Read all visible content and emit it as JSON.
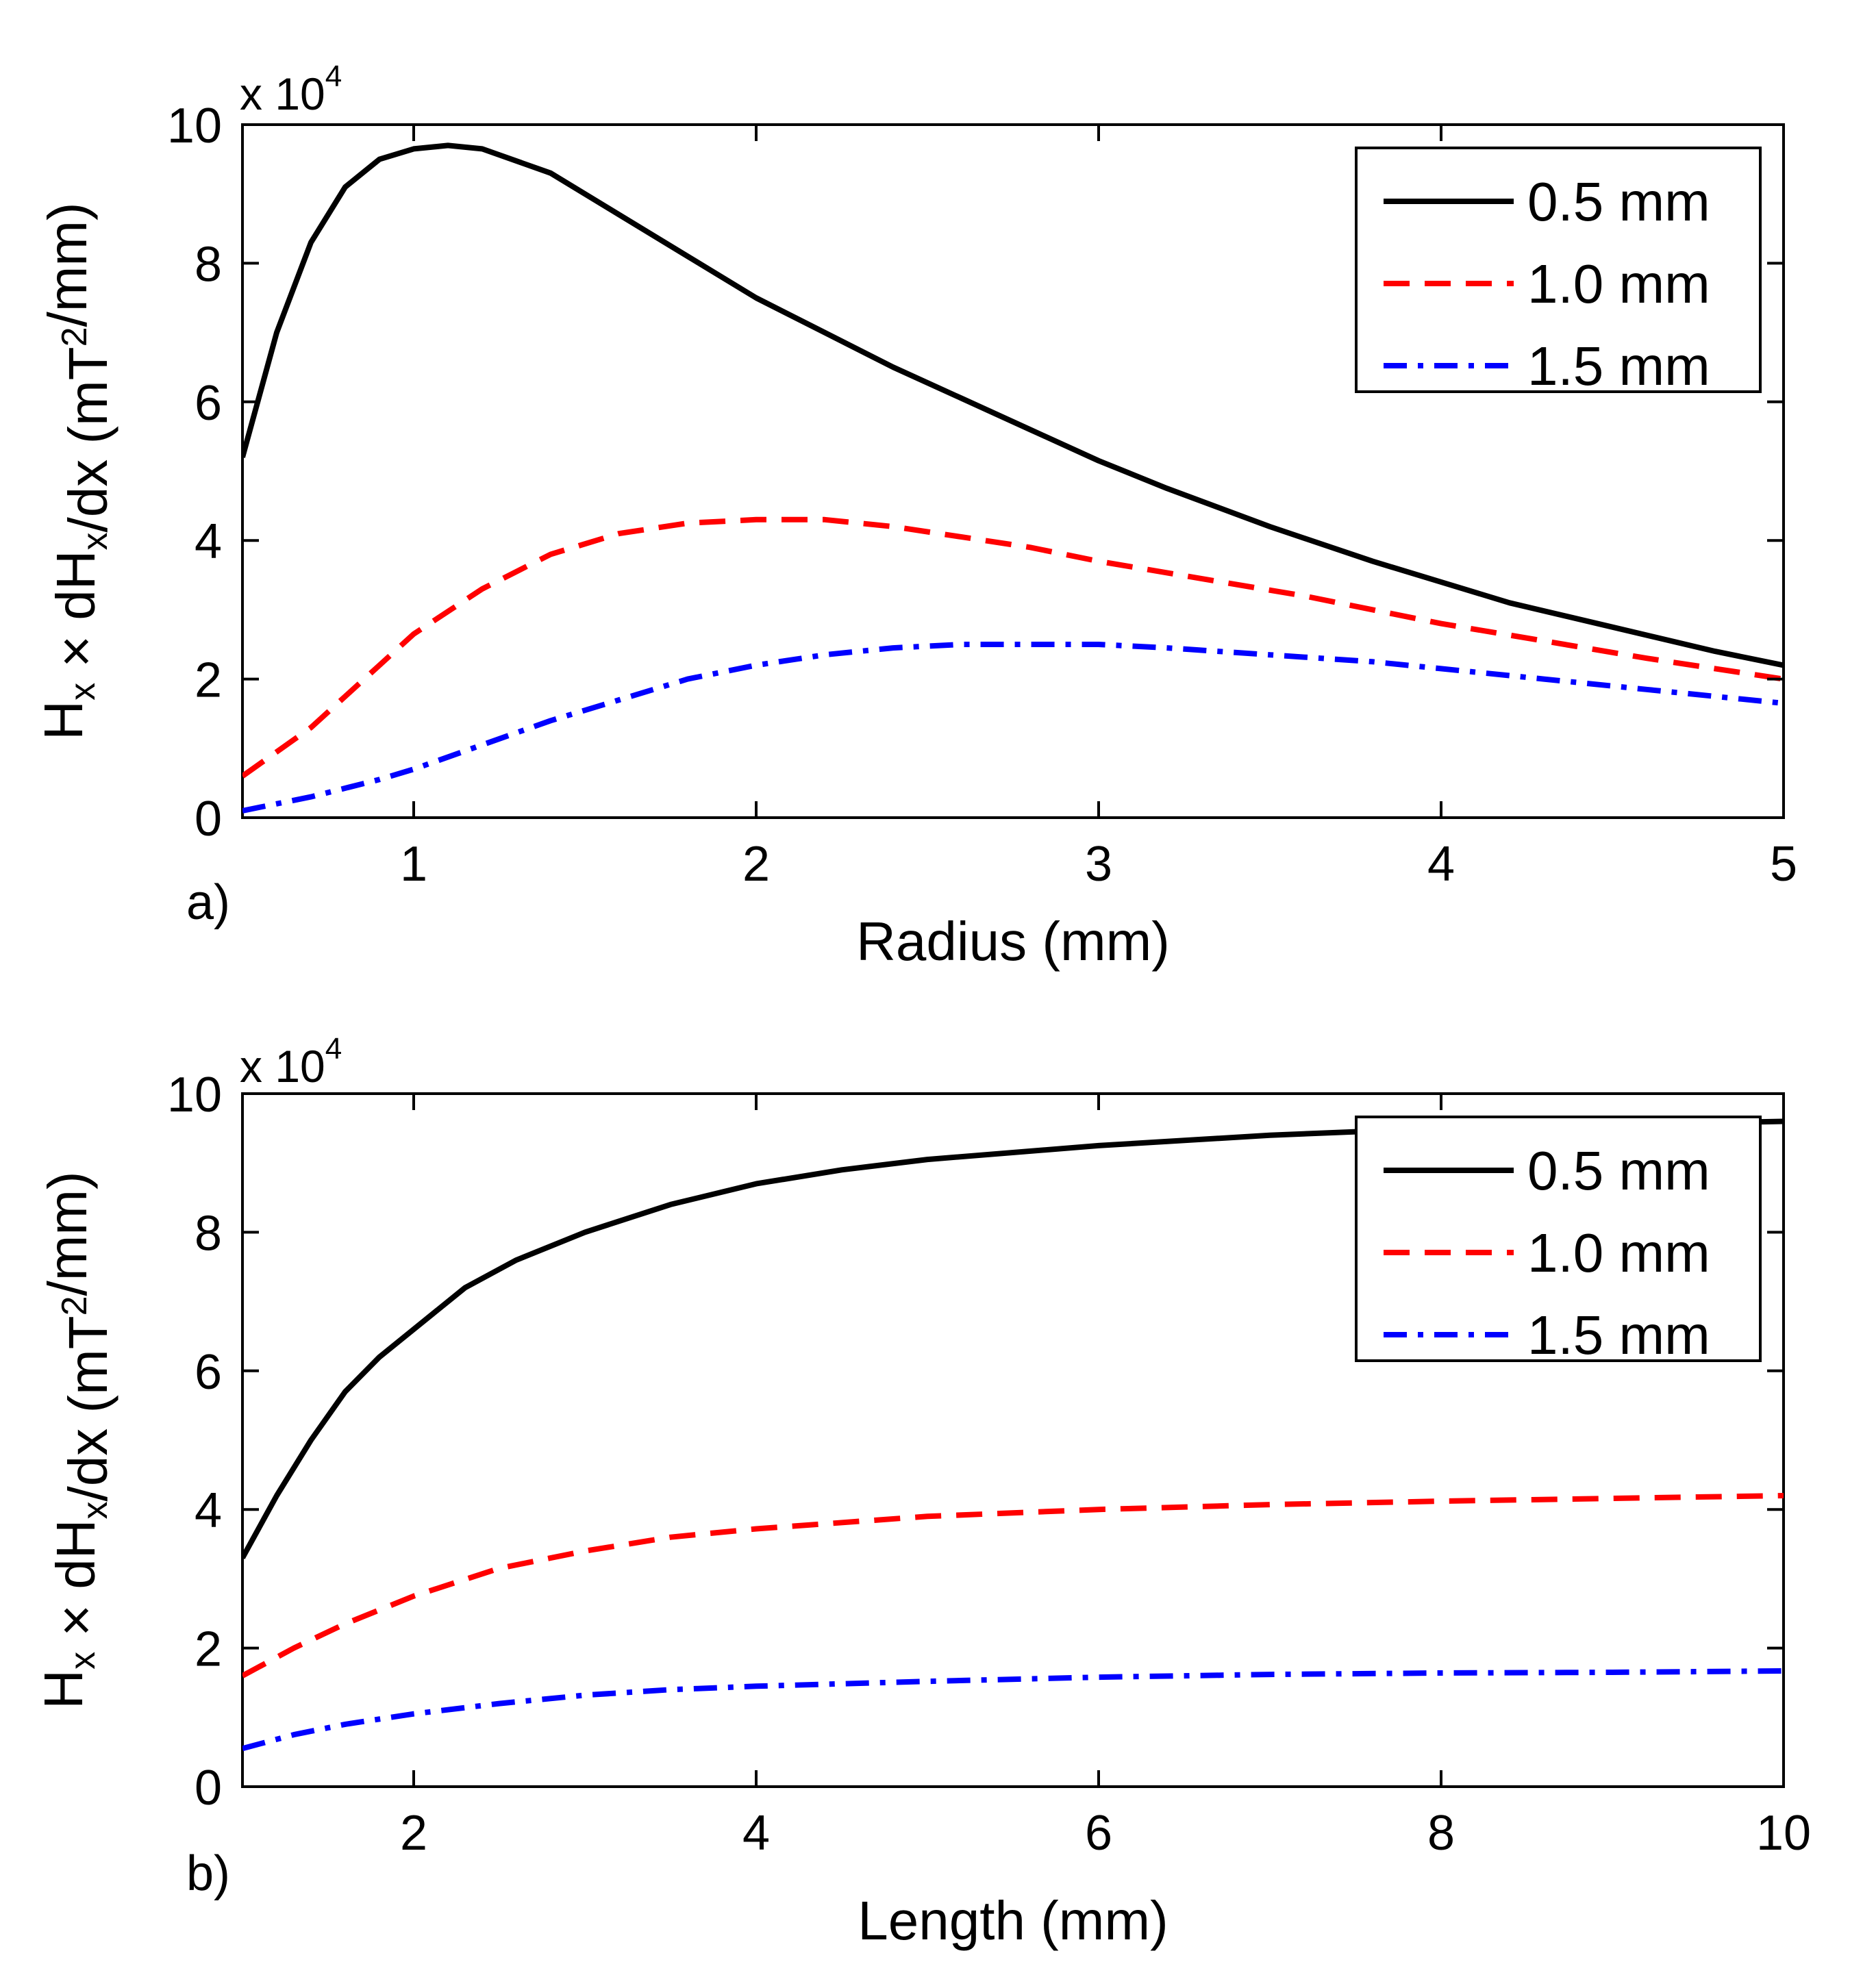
{
  "chart_data": [
    {
      "type": "line",
      "panel_label": "a)",
      "xlabel": "Radius (mm)",
      "ylabel": "H_x × dH_x/dx (mT^2/mm)",
      "y_multiplier": {
        "base": "x 10",
        "exponent": "4"
      },
      "xlim": [
        0.5,
        5
      ],
      "ylim": [
        0,
        10
      ],
      "xticks": [
        1,
        2,
        3,
        4,
        5
      ],
      "yticks": [
        0,
        2,
        4,
        6,
        8,
        10
      ],
      "legend": {
        "position": "top-right"
      },
      "grid": false,
      "series": [
        {
          "name": "0.5 mm",
          "color": "#000000",
          "style": "solid",
          "x": [
            0.5,
            0.6,
            0.7,
            0.8,
            0.9,
            1.0,
            1.1,
            1.2,
            1.4,
            1.6,
            1.8,
            2.0,
            2.2,
            2.4,
            2.6,
            2.8,
            3.0,
            3.2,
            3.5,
            3.8,
            4.0,
            4.2,
            4.5,
            4.8,
            5.0
          ],
          "y": [
            5.2,
            7.0,
            8.3,
            9.1,
            9.5,
            9.65,
            9.7,
            9.65,
            9.3,
            8.7,
            8.1,
            7.5,
            7.0,
            6.5,
            6.05,
            5.6,
            5.15,
            4.75,
            4.2,
            3.7,
            3.4,
            3.1,
            2.75,
            2.4,
            2.2
          ]
        },
        {
          "name": "1.0 mm",
          "color": "#ff0000",
          "style": "dashed",
          "x": [
            0.5,
            0.7,
            0.9,
            1.0,
            1.2,
            1.4,
            1.6,
            1.8,
            2.0,
            2.2,
            2.4,
            2.6,
            2.8,
            3.0,
            3.3,
            3.6,
            4.0,
            4.3,
            4.6,
            5.0
          ],
          "y": [
            0.6,
            1.3,
            2.2,
            2.65,
            3.3,
            3.8,
            4.1,
            4.25,
            4.3,
            4.3,
            4.2,
            4.05,
            3.9,
            3.7,
            3.45,
            3.2,
            2.8,
            2.55,
            2.3,
            2.0
          ]
        },
        {
          "name": "1.5 mm",
          "color": "#0000ff",
          "style": "dashdot",
          "x": [
            0.5,
            0.7,
            0.9,
            1.0,
            1.2,
            1.4,
            1.6,
            1.8,
            2.0,
            2.2,
            2.4,
            2.6,
            2.8,
            3.0,
            3.2,
            3.5,
            3.8,
            4.0,
            4.3,
            4.6,
            5.0
          ],
          "y": [
            0.1,
            0.3,
            0.55,
            0.7,
            1.05,
            1.4,
            1.7,
            2.0,
            2.2,
            2.35,
            2.45,
            2.5,
            2.5,
            2.5,
            2.45,
            2.35,
            2.25,
            2.15,
            2.0,
            1.85,
            1.65
          ]
        }
      ]
    },
    {
      "type": "line",
      "panel_label": "b)",
      "xlabel": "Length (mm)",
      "ylabel": "H_x × dH_x/dx (mT^2/mm)",
      "y_multiplier": {
        "base": "x 10",
        "exponent": "4"
      },
      "xlim": [
        1,
        10
      ],
      "ylim": [
        0,
        10
      ],
      "xticks": [
        2,
        4,
        6,
        8,
        10
      ],
      "yticks": [
        0,
        2,
        4,
        6,
        8,
        10
      ],
      "legend": {
        "position": "top-right"
      },
      "grid": false,
      "series": [
        {
          "name": "0.5 mm",
          "color": "#000000",
          "style": "solid",
          "x": [
            1.0,
            1.2,
            1.4,
            1.6,
            1.8,
            2.0,
            2.3,
            2.6,
            3.0,
            3.5,
            4.0,
            4.5,
            5.0,
            6.0,
            7.0,
            8.0,
            9.0,
            10.0
          ],
          "y": [
            3.3,
            4.2,
            5.0,
            5.7,
            6.2,
            6.6,
            7.2,
            7.6,
            8.0,
            8.4,
            8.7,
            8.9,
            9.05,
            9.25,
            9.4,
            9.5,
            9.55,
            9.6
          ]
        },
        {
          "name": "1.0 mm",
          "color": "#ff0000",
          "style": "dashed",
          "x": [
            1.0,
            1.3,
            1.6,
            2.0,
            2.5,
            3.0,
            3.5,
            4.0,
            5.0,
            6.0,
            7.0,
            8.0,
            9.0,
            10.0
          ],
          "y": [
            1.6,
            2.0,
            2.35,
            2.75,
            3.15,
            3.4,
            3.6,
            3.72,
            3.9,
            4.0,
            4.07,
            4.12,
            4.16,
            4.2
          ]
        },
        {
          "name": "1.5 mm",
          "color": "#0000ff",
          "style": "dashdot",
          "x": [
            1.0,
            1.3,
            1.6,
            2.0,
            2.5,
            3.0,
            3.5,
            4.0,
            5.0,
            6.0,
            7.0,
            8.0,
            9.0,
            10.0
          ],
          "y": [
            0.55,
            0.75,
            0.9,
            1.05,
            1.2,
            1.32,
            1.4,
            1.45,
            1.52,
            1.58,
            1.62,
            1.64,
            1.65,
            1.67
          ]
        }
      ]
    }
  ]
}
